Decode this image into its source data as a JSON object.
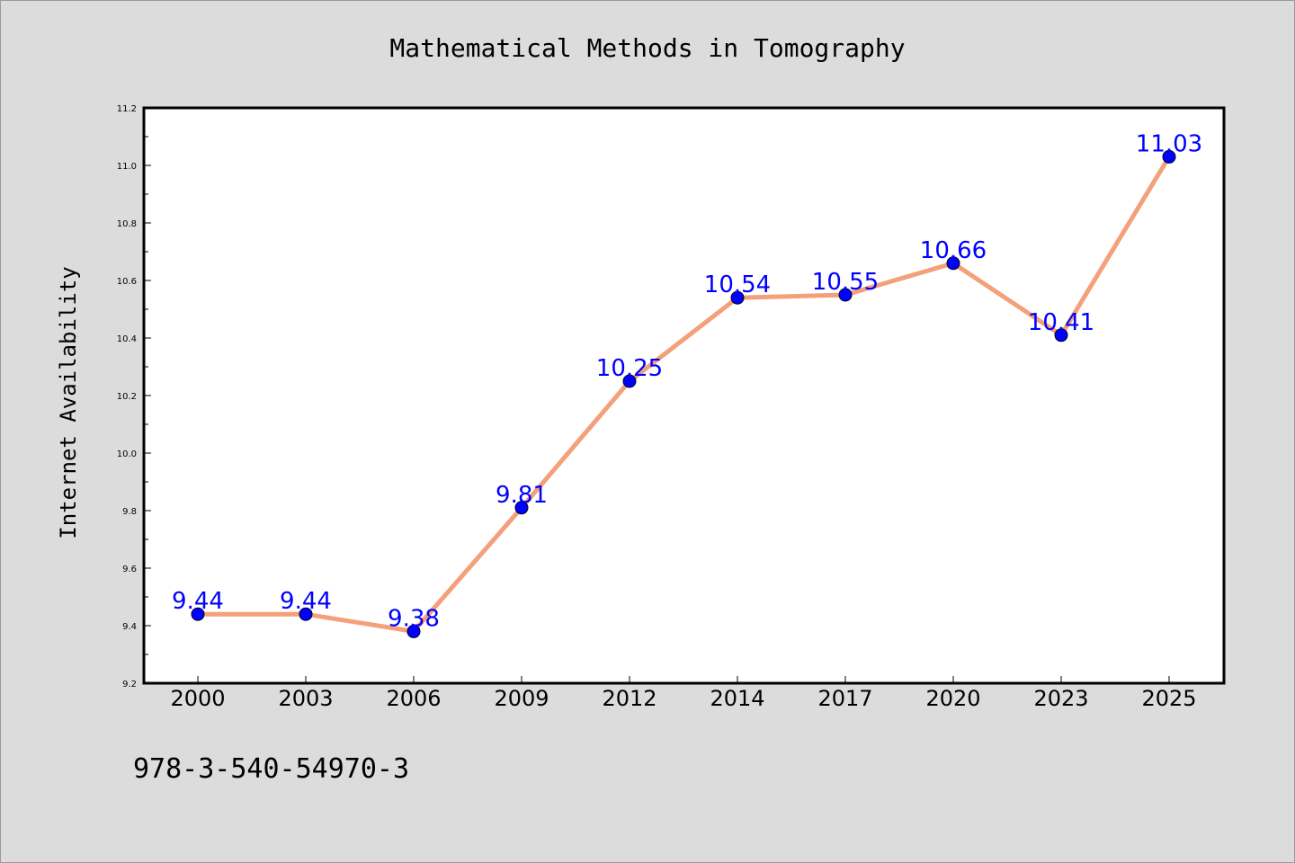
{
  "chart_data": {
    "type": "line",
    "title": "Mathematical Methods in Tomography",
    "xlabel": "",
    "ylabel": "Internet Availability",
    "categories": [
      "2000",
      "2003",
      "2006",
      "2009",
      "2012",
      "2014",
      "2017",
      "2020",
      "2023",
      "2025"
    ],
    "values": [
      9.44,
      9.44,
      9.38,
      9.81,
      10.25,
      10.54,
      10.55,
      10.66,
      10.41,
      11.03
    ],
    "data_labels": [
      "9.44",
      "9.44",
      "9.38",
      "9.81",
      "10.25",
      "10.54",
      "10.55",
      "10.66",
      "10.41",
      "11.03"
    ],
    "ylim": [
      9.2,
      11.2
    ],
    "y_ticks": [
      "9.2",
      "9.4",
      "9.6",
      "9.8",
      "10.0",
      "10.2",
      "10.4",
      "10.6",
      "10.8",
      "11.0",
      "11.2"
    ],
    "grid": false,
    "legend": "none",
    "colors": {
      "line": "#f4a07a",
      "marker": "#0000ff",
      "data_label": "#0000ff",
      "background": "#dcdcdc",
      "plot_area": "#ffffff"
    }
  },
  "footer": {
    "identifier": "978-3-540-54970-3"
  }
}
